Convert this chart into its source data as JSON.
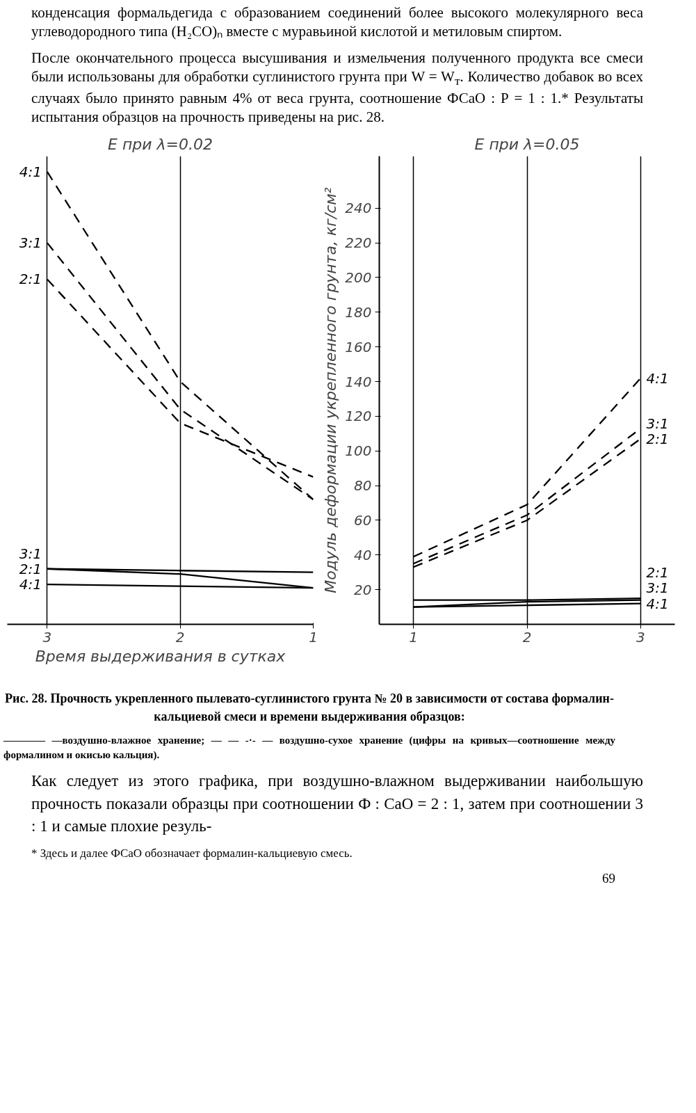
{
  "chart_data": [
    {
      "type": "line",
      "title": "E при λ=0.02",
      "xlabel": "Время выдерживания в сутках",
      "xlim": [
        3.3,
        1
      ],
      "xticks": [
        3,
        2,
        1
      ],
      "ylim": [
        0,
        270
      ],
      "yticks": [
        20,
        40,
        60,
        80,
        100,
        120,
        140,
        160,
        180,
        200,
        220,
        240
      ],
      "tick_labels": "x",
      "grid": "x",
      "annotations": [
        "конденсация формальдегида с образованием соединений более высокого молекулярного веса углеводородного типа (H₂CO)ₙ вместе с муравьиной кислотой и метиловым спиртом.",
        "После окончательного процесса высушивания и измельчения полученного продукта все смеси были использованы для обработки суглинистого грунта при W = W$_{т}$. Количество добавок во всех случаях было принято равным 4% от веса грунта, соотношение ФСаО : Р = 1 : 1.* Результаты испытания образцов на прочность приведены на рис. 28."
      ],
      "x": [
        3,
        2,
        1
      ],
      "series": [
        {
          "name": "4:1",
          "color": "#000000",
          "line_style": "dashed",
          "values": [
            261,
            140,
            72
          ]
        },
        {
          "name": "3:1",
          "color": "#000000",
          "line_style": "dashed",
          "values": [
            220,
            124,
            72
          ]
        },
        {
          "name": "2:1",
          "color": "#000000",
          "line_style": "dashed",
          "values": [
            199,
            116,
            85
          ]
        },
        {
          "name": "2:1",
          "color": "#000000",
          "line_style": "solid",
          "values": [
            32,
            31,
            30
          ]
        },
        {
          "name": "3:1",
          "color": "#000000",
          "line_style": "solid",
          "values": [
            32,
            29,
            21
          ]
        },
        {
          "name": "4:1",
          "color": "#000000",
          "line_style": "solid",
          "values": [
            23,
            22,
            21
          ]
        }
      ]
    },
    {
      "type": "line",
      "title": "E при λ=0.05",
      "ylabel": "Модуль деформации укрепленного грунта, кг/см²",
      "xlim": [
        0.7,
        3.3
      ],
      "xticks": [
        1,
        2,
        3
      ],
      "ylim": [
        0,
        270
      ],
      "yticks": [
        20,
        40,
        60,
        80,
        100,
        120,
        140,
        160,
        180,
        200,
        220,
        240
      ],
      "grid": "x",
      "annotations": [
        "Рис. 28. Прочность укрепленного пылевато-суглинистого грунта № 20 в зависимости от состава формалин-кальциевой смеси и времени выдерживания образцов:",
        "———— —воздушно-влажное хранение; — — -·- — воздушно-сухое хранение (цифры на кривых—соотношение между формалином и окисью кальция).",
        "Как следует из этого графика, при воздушно-влажном выдерживании наибольшую прочность показали образцы при соотношении Ф : СаО = 2 : 1, затем при соотношении 3 : 1 и самые плохие резуль-",
        "* Здесь и далее ФСаО обозначает формалин-кальциевую смесь.",
        "69"
      ],
      "x": [
        1,
        2,
        3
      ],
      "series": [
        {
          "name": "4:1",
          "color": "#000000",
          "line_style": "dashed",
          "values": [
            39,
            69,
            142
          ]
        },
        {
          "name": "3:1",
          "color": "#000000",
          "line_style": "dashed",
          "values": [
            35,
            63,
            113
          ]
        },
        {
          "name": "2:1",
          "color": "#000000",
          "line_style": "dashed",
          "values": [
            33,
            60,
            107
          ]
        },
        {
          "name": "2:1",
          "color": "#000000",
          "line_style": "solid",
          "values": [
            14,
            14,
            15
          ]
        },
        {
          "name": "3:1",
          "color": "#000000",
          "line_style": "solid",
          "values": [
            10,
            13,
            14
          ]
        },
        {
          "name": "4:1",
          "color": "#000000",
          "line_style": "solid",
          "values": [
            10,
            11,
            12
          ]
        }
      ]
    }
  ]
}
